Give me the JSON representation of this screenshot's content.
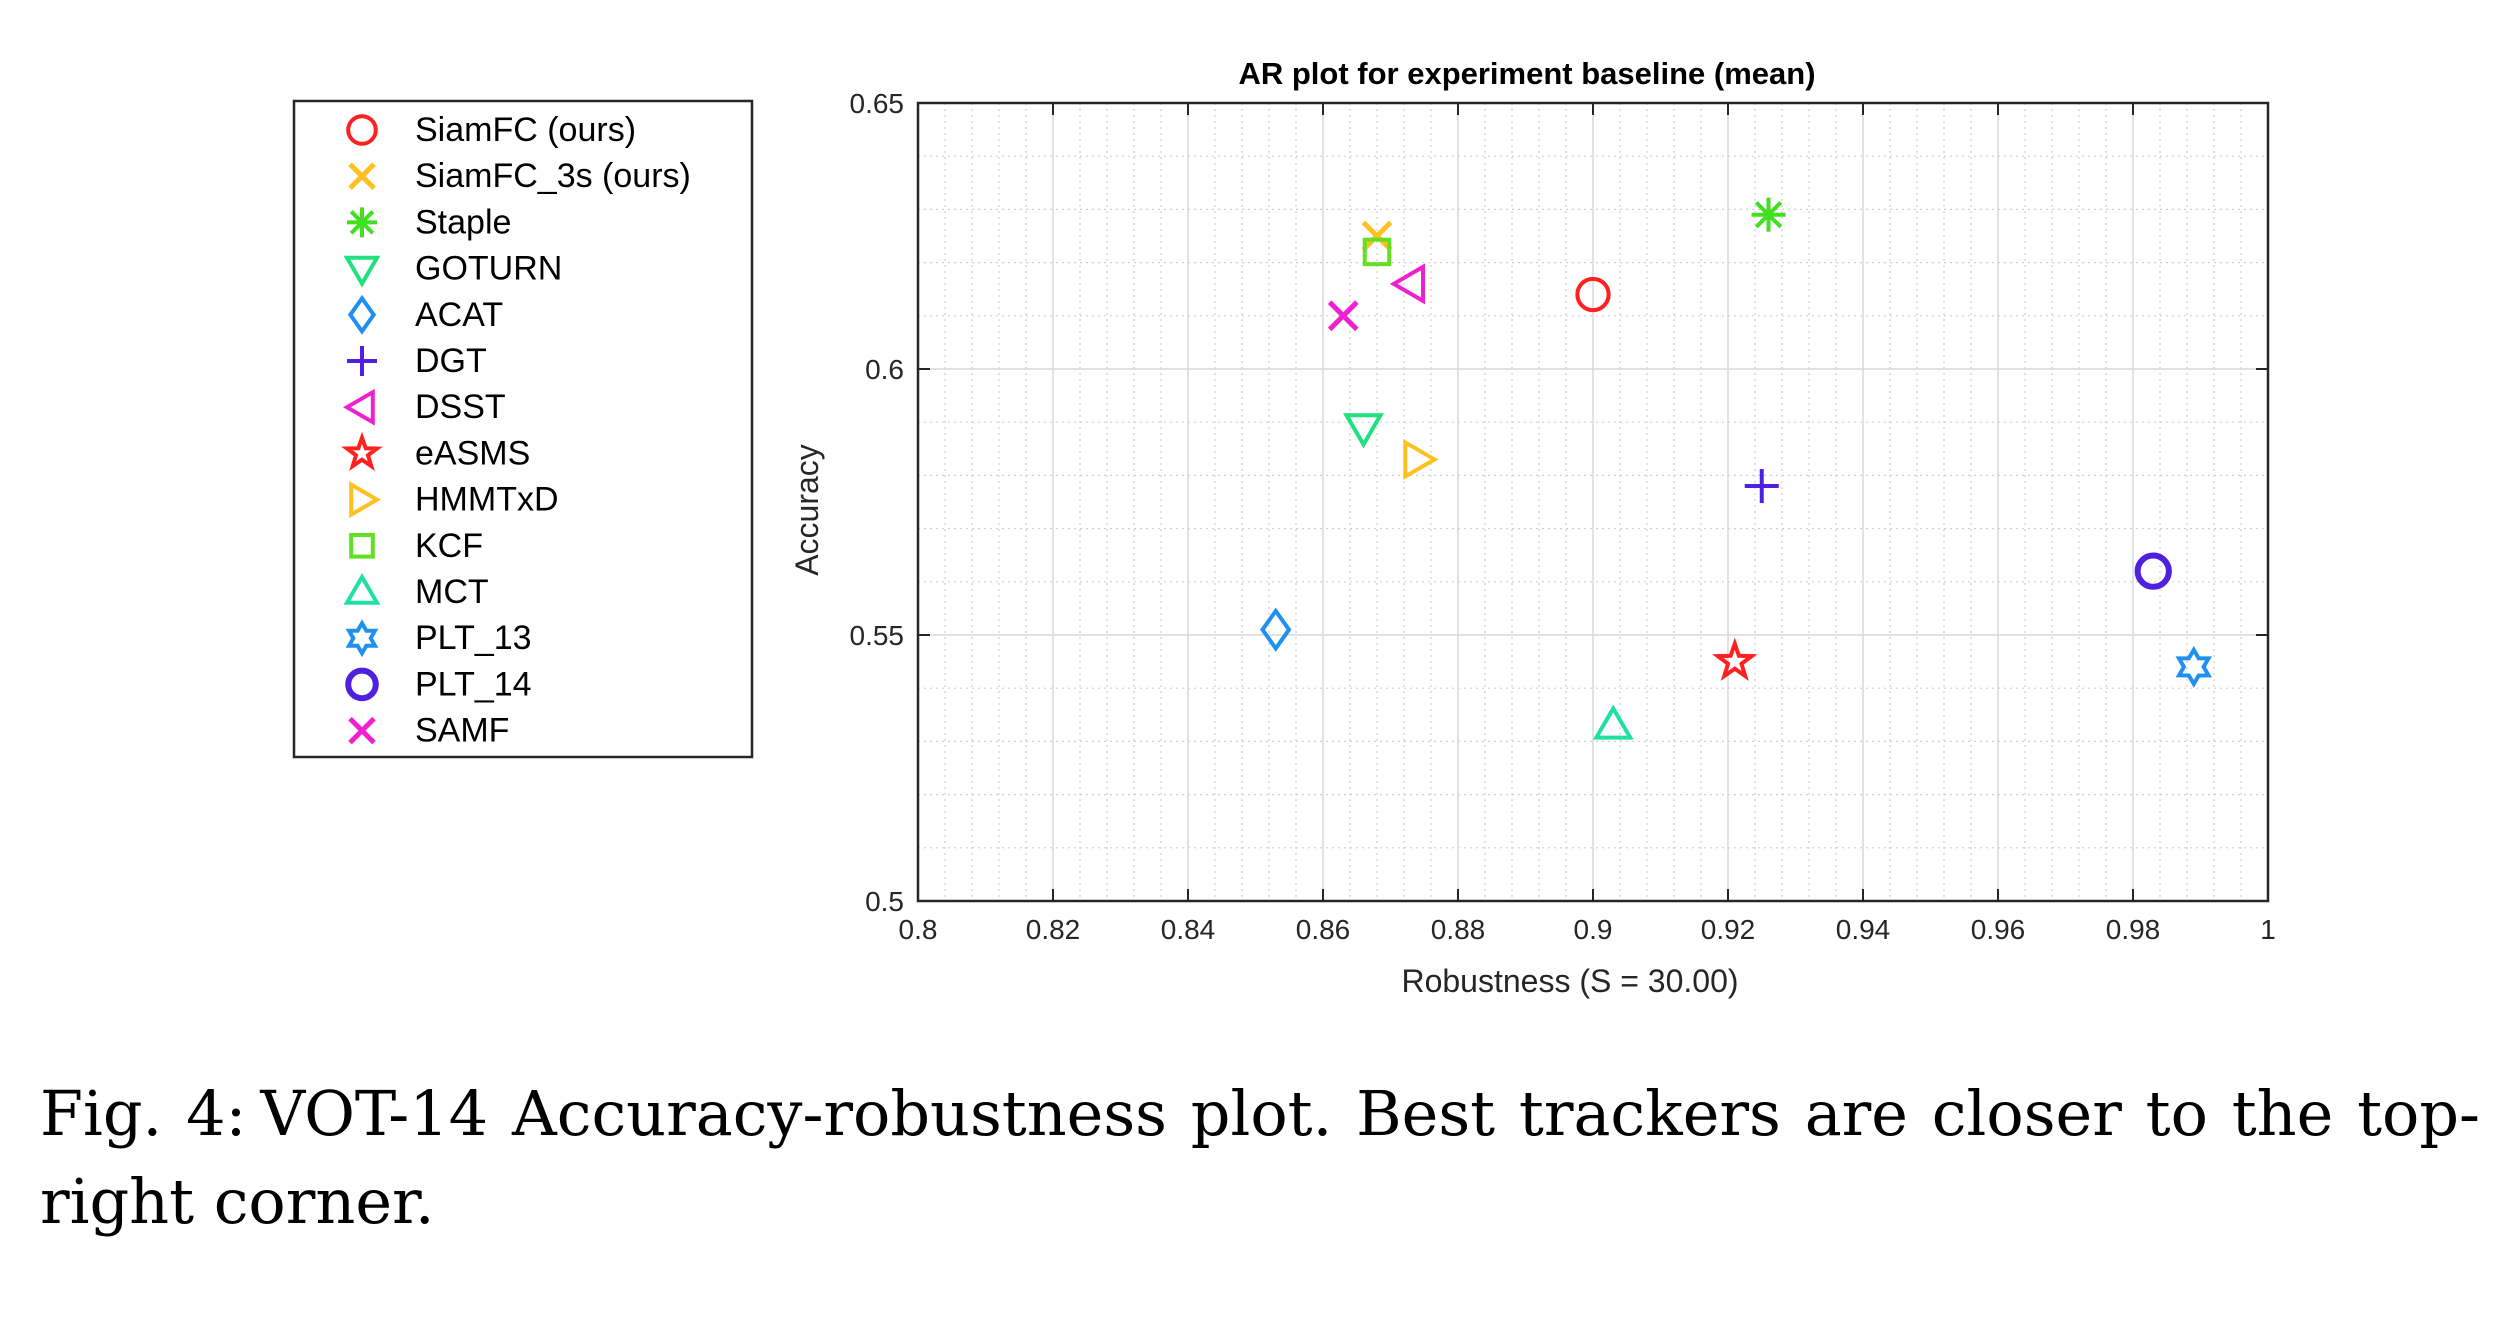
{
  "chart_data": {
    "type": "scatter",
    "title": "AR plot for experiment baseline (mean)",
    "xlabel": "Robustness (S = 30.00)",
    "ylabel": "Accuracy",
    "xlim": [
      0.8,
      1.0
    ],
    "ylim": [
      0.5,
      0.65
    ],
    "xticks": [
      "0.8",
      "0.82",
      "0.84",
      "0.86",
      "0.88",
      "0.9",
      "0.92",
      "0.94",
      "0.96",
      "0.98",
      "1"
    ],
    "yticks": [
      "0.5",
      "0.55",
      "0.6",
      "0.65"
    ],
    "grid": true,
    "legend_position": "outside-left",
    "series": [
      {
        "name": "SiamFC (ours)",
        "marker": "circle",
        "color": "#ff2020",
        "x": 0.9,
        "y": 0.614
      },
      {
        "name": "SiamFC_3s (ours)",
        "marker": "x",
        "color": "#ffc020",
        "x": 0.868,
        "y": 0.625
      },
      {
        "name": "Staple",
        "marker": "asterisk",
        "color": "#40e020",
        "x": 0.926,
        "y": 0.629
      },
      {
        "name": "GOTURN",
        "marker": "triangle-down",
        "color": "#20e080",
        "x": 0.866,
        "y": 0.589
      },
      {
        "name": "ACAT",
        "marker": "diamond",
        "color": "#2090f0",
        "x": 0.853,
        "y": 0.551
      },
      {
        "name": "DGT",
        "marker": "plus",
        "color": "#5020e0",
        "x": 0.925,
        "y": 0.578
      },
      {
        "name": "DSST",
        "marker": "triangle-left",
        "color": "#f020d0",
        "x": 0.873,
        "y": 0.616
      },
      {
        "name": "eASMS",
        "marker": "star",
        "color": "#ff2020",
        "x": 0.921,
        "y": 0.545
      },
      {
        "name": "HMMTxD",
        "marker": "triangle-right",
        "color": "#ffc020",
        "x": 0.874,
        "y": 0.583
      },
      {
        "name": "KCF",
        "marker": "square",
        "color": "#60e020",
        "x": 0.868,
        "y": 0.622
      },
      {
        "name": "MCT",
        "marker": "triangle-up",
        "color": "#20e0a0",
        "x": 0.903,
        "y": 0.533
      },
      {
        "name": "PLT_13",
        "marker": "hexagram",
        "color": "#2090f0",
        "x": 0.989,
        "y": 0.544
      },
      {
        "name": "PLT_14",
        "marker": "circle-bold",
        "color": "#5020e0",
        "x": 0.983,
        "y": 0.562
      },
      {
        "name": "SAMF",
        "marker": "x",
        "color": "#f020d0",
        "x": 0.863,
        "y": 0.61
      }
    ]
  },
  "caption": {
    "label": "Fig. 4:",
    "text": "VOT-14 Accuracy-robustness plot. Best trackers are closer to the top-right corner."
  }
}
